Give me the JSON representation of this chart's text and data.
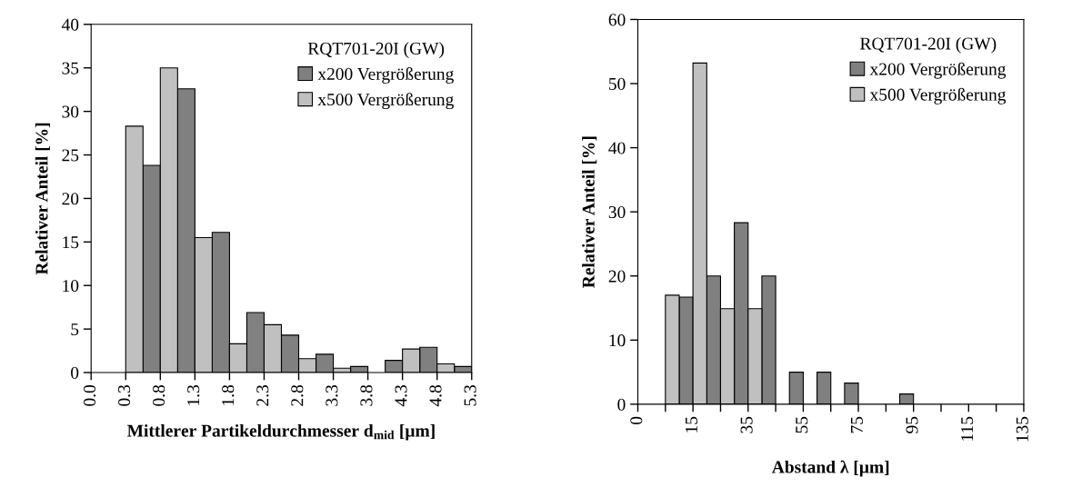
{
  "chart_data": [
    {
      "type": "bar",
      "xlabel": "Mittlerer Partikeldurchmesser d$_{mid}$ [µm]",
      "ylabel": "Relativer Anteil [%]",
      "legend_title": "RQT701-20I (GW)",
      "legend": "top right",
      "categories": [
        "0.0",
        "0.3",
        "0.8",
        "1.3",
        "1.8",
        "2.3",
        "2.8",
        "3.3",
        "3.8",
        "4.3",
        "4.8",
        "5.3"
      ],
      "series": [
        {
          "name": "x200 Vergrößerung",
          "color": "#808080",
          "values": [
            null,
            null,
            23.8,
            32.6,
            16.1,
            6.9,
            4.3,
            2.1,
            0.7,
            1.4,
            2.9,
            0.7
          ]
        },
        {
          "name": "x500 Vergrößerung",
          "color": "#c0c0c0",
          "values": [
            null,
            28.3,
            35.0,
            15.5,
            3.3,
            5.5,
            1.6,
            0.5,
            null,
            2.7,
            1.0,
            null
          ]
        }
      ],
      "ylim": [
        0,
        40
      ],
      "yticks": [
        0,
        5,
        10,
        15,
        20,
        25,
        30,
        35,
        40
      ],
      "grid": false
    },
    {
      "type": "bar",
      "xlabel": "Abstand λ [µm]",
      "ylabel": "Relativer Anteil [%]",
      "legend_title": "RQT701-20I (GW)",
      "legend": "top right",
      "categories": [
        "0",
        null,
        "15",
        null,
        "35",
        null,
        "55",
        null,
        "75",
        null,
        "95",
        null,
        "115",
        null,
        "135"
      ],
      "series": [
        {
          "name": "x200 Vergrößerung",
          "color": "#808080",
          "values": [
            null,
            null,
            16.7,
            20.0,
            28.3,
            20.0,
            5.0,
            5.0,
            3.3,
            null,
            1.6,
            null,
            null,
            null,
            null
          ]
        },
        {
          "name": "x500 Vergrößerung",
          "color": "#c0c0c0",
          "values": [
            null,
            17.0,
            53.2,
            14.9,
            14.9,
            null,
            null,
            null,
            null,
            null,
            null,
            null,
            null,
            null,
            null
          ]
        }
      ],
      "ylim": [
        0,
        60
      ],
      "yticks": [
        0,
        10,
        20,
        30,
        40,
        50,
        60
      ],
      "grid": false
    }
  ]
}
